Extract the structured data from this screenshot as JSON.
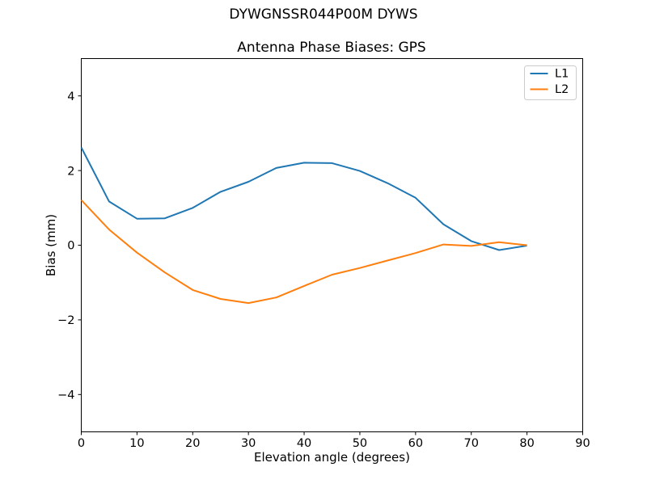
{
  "figure": {
    "suptitle": "DYWGNSSR044P00M DYWS"
  },
  "chart_data": {
    "type": "line",
    "title": "Antenna Phase Biases: GPS",
    "xlabel": "Elevation angle (degrees)",
    "ylabel": "Bias (mm)",
    "xlim": [
      0,
      90
    ],
    "ylim": [
      -5,
      5
    ],
    "xticks": [
      0,
      10,
      20,
      30,
      40,
      50,
      60,
      70,
      80,
      90
    ],
    "yticks": [
      -4,
      -2,
      0,
      2,
      4
    ],
    "grid": false,
    "legend_position": "upper right",
    "x": [
      0,
      5,
      10,
      15,
      20,
      25,
      30,
      35,
      40,
      45,
      50,
      55,
      60,
      65,
      70,
      75,
      80
    ],
    "series": [
      {
        "name": "L1",
        "color": "#1f77b4",
        "values": [
          2.62,
          1.17,
          0.71,
          0.72,
          1.0,
          1.43,
          1.7,
          2.07,
          2.21,
          2.2,
          1.99,
          1.66,
          1.27,
          0.56,
          0.11,
          -0.13,
          -0.01
        ]
      },
      {
        "name": "L2",
        "color": "#ff7f0e",
        "values": [
          1.21,
          0.42,
          -0.2,
          -0.73,
          -1.2,
          -1.44,
          -1.55,
          -1.4,
          -1.09,
          -0.79,
          -0.61,
          -0.41,
          -0.21,
          0.02,
          -0.02,
          0.08,
          0.0
        ]
      }
    ]
  }
}
